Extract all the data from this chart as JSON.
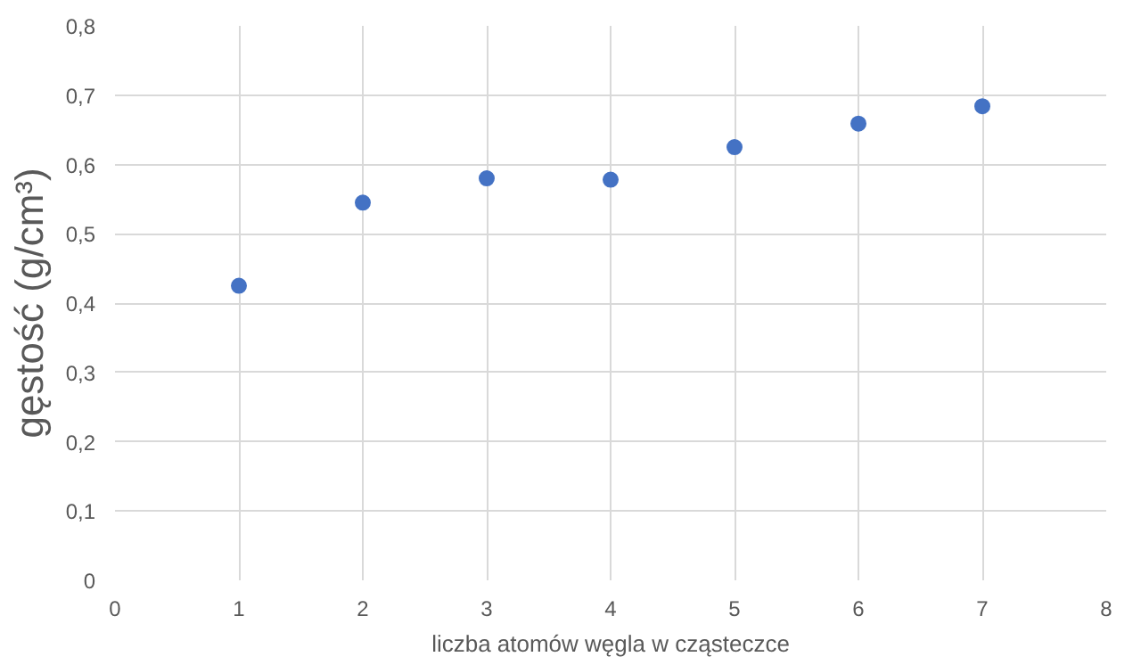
{
  "chart_data": {
    "type": "scatter",
    "xlabel": "liczba atomów węgla w cząsteczce",
    "ylabel": "gęstość (g/cm³)",
    "x": [
      1,
      2,
      3,
      4,
      5,
      6,
      7
    ],
    "series": [
      {
        "color": "#4472c4",
        "values": [
          0.425,
          0.545,
          0.58,
          0.578,
          0.625,
          0.659,
          0.684
        ]
      }
    ],
    "xlim": [
      0,
      8
    ],
    "xticks": [
      0,
      1,
      2,
      3,
      4,
      5,
      6,
      7,
      8
    ],
    "ylim": [
      0,
      0.8
    ],
    "yticks": [
      {
        "value": 0,
        "label": "0"
      },
      {
        "value": 0.1,
        "label": "0,1"
      },
      {
        "value": 0.2,
        "label": "0,2"
      },
      {
        "value": 0.3,
        "label": "0,3"
      },
      {
        "value": 0.4,
        "label": "0,4"
      },
      {
        "value": 0.5,
        "label": "0,5"
      },
      {
        "value": 0.6,
        "label": "0,6"
      },
      {
        "value": 0.7,
        "label": "0,7"
      },
      {
        "value": 0.8,
        "label": "0,8"
      }
    ],
    "grid": true,
    "marker": "circle"
  }
}
